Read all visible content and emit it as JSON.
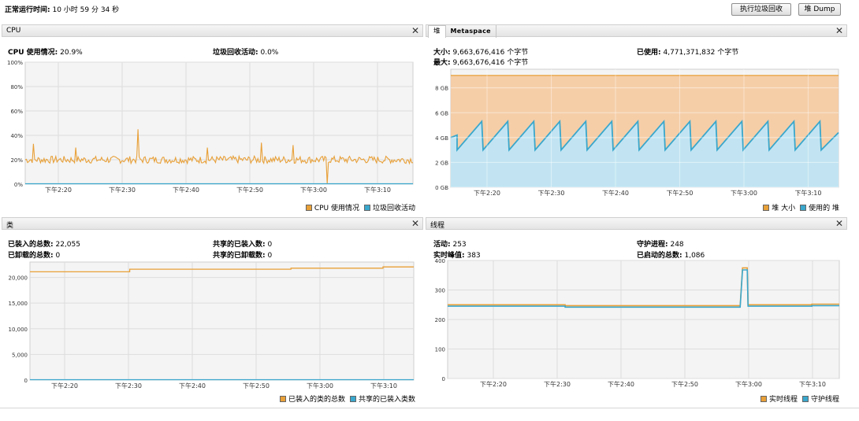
{
  "uptime": {
    "label": "正常运行时间:",
    "value": "10 小时 59 分 34 秒"
  },
  "buttons": {
    "gc": "执行垃圾回收",
    "dump": "堆 Dump"
  },
  "colors": {
    "orange": "#e8a038",
    "blue": "#3aa7cc",
    "heap_fill": "#f4c79a",
    "used_fill": "#bfe5f6",
    "grid": "#dddddd",
    "plot_bg": "#f4f4f4"
  },
  "cpu": {
    "title": "CPU",
    "usage_label": "CPU 使用情况:",
    "usage_value": "20.9%",
    "gc_label": "垃圾回收活动:",
    "gc_value": "0.0%",
    "legend": [
      "CPU 使用情况",
      "垃圾回收活动"
    ]
  },
  "heap": {
    "tabs": [
      "堆",
      "Metaspace"
    ],
    "size_label": "大小:",
    "size_value": "9,663,676,416 个字节",
    "max_label": "最大:",
    "max_value": "9,663,676,416 个字节",
    "used_label": "已使用:",
    "used_value": "4,771,371,832 个字节",
    "legend": [
      "堆 大小",
      "使用的 堆"
    ]
  },
  "classes": {
    "title": "类",
    "loaded_label": "已装入的总数:",
    "loaded_value": "22,055",
    "unloaded_label": "已卸载的总数:",
    "unloaded_value": "0",
    "shared_loaded_label": "共享的已装入数:",
    "shared_loaded_value": "0",
    "shared_unloaded_label": "共享的已卸载数:",
    "shared_unloaded_value": "0",
    "legend": [
      "已装入的类的总数",
      "共享的已装入类数"
    ]
  },
  "threads": {
    "title": "线程",
    "live_label": "活动:",
    "live_value": "253",
    "peak_label": "实时峰值:",
    "peak_value": "383",
    "daemon_label": "守护进程:",
    "daemon_value": "248",
    "started_label": "已启动的总数:",
    "started_value": "1,086",
    "legend": [
      "实时线程",
      "守护线程"
    ]
  },
  "chart_data": [
    {
      "id": "cpu",
      "type": "line",
      "x_ticks": [
        "下午2:20",
        "下午2:30",
        "下午2:40",
        "下午2:50",
        "下午3:00",
        "下午3:10"
      ],
      "y_ticks": [
        "0%",
        "20%",
        "40%",
        "60%",
        "80%",
        "100%"
      ],
      "ylim": [
        0,
        100
      ],
      "series": [
        {
          "name": "CPU 使用情况",
          "baseline": 20,
          "noise": 3,
          "spikes": [
            [
              0.02,
              33
            ],
            [
              0.29,
              45
            ],
            [
              0.13,
              30
            ],
            [
              0.61,
              34
            ],
            [
              0.69,
              32
            ],
            [
              0.78,
              0
            ],
            [
              0.47,
              30
            ]
          ]
        },
        {
          "name": "垃圾回收活动",
          "baseline": 0
        }
      ]
    },
    {
      "id": "heap",
      "type": "area",
      "x_ticks": [
        "下午2:20",
        "下午2:30",
        "下午2:40",
        "下午2:50",
        "下午3:00",
        "下午3:10"
      ],
      "y_ticks": [
        "0 GB",
        "2 GB",
        "4 GB",
        "6 GB",
        "8 GB"
      ],
      "ylim": [
        0,
        9.5
      ],
      "series": [
        {
          "name": "堆 大小",
          "value": 9.0
        },
        {
          "name": "使用的 堆",
          "low": 3.0,
          "high": 5.3,
          "cycles": 14,
          "start": 4.0,
          "end": 4.4
        }
      ]
    },
    {
      "id": "classes",
      "type": "line",
      "x_ticks": [
        "下午2:20",
        "下午2:30",
        "下午2:40",
        "下午2:50",
        "下午3:00",
        "下午3:10"
      ],
      "y_ticks": [
        "0",
        "5,000",
        "10,000",
        "15,000",
        "20,000"
      ],
      "ylim": [
        0,
        23000
      ],
      "series": [
        {
          "name": "已装入的类的总数",
          "steps": [
            [
              0,
              21100
            ],
            [
              0.26,
              21600
            ],
            [
              0.68,
              21800
            ],
            [
              0.92,
              22055
            ]
          ]
        },
        {
          "name": "共享的已装入类数",
          "value": 0
        }
      ]
    },
    {
      "id": "threads",
      "type": "line",
      "x_ticks": [
        "下午2:20",
        "下午2:30",
        "下午2:40",
        "下午2:50",
        "下午3:00",
        "下午3:10"
      ],
      "y_ticks": [
        "0",
        "100",
        "200",
        "300",
        "400"
      ],
      "ylim": [
        0,
        400
      ],
      "series": [
        {
          "name": "实时线程",
          "baseline": 250,
          "peak": 375,
          "peak_at": 0.755
        },
        {
          "name": "守护线程",
          "baseline": 245,
          "peak": 368,
          "peak_at": 0.755
        }
      ]
    }
  ]
}
